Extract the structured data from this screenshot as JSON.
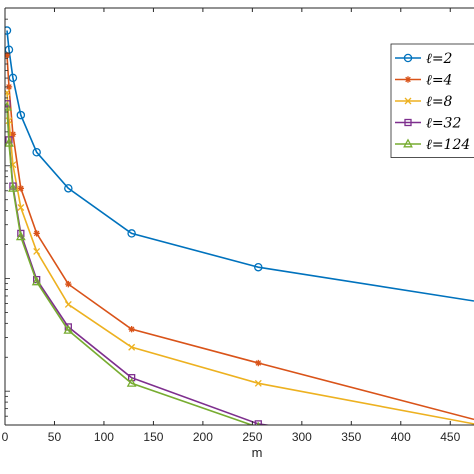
{
  "chart_data": {
    "type": "line",
    "title": "",
    "xlabel": "m",
    "ylabel": "",
    "xlim": [
      0,
      474
    ],
    "ylim_log10": [
      -4.3,
      -0.6
    ],
    "y_scale": "log",
    "x_ticks": [
      0,
      50,
      100,
      150,
      200,
      250,
      300,
      350,
      400,
      450
    ],
    "grid": false,
    "legend_position": "top-right",
    "series": [
      {
        "name": "ℓ=2",
        "color": "#0072BD",
        "marker": "circle",
        "x": [
          2,
          4,
          8,
          16,
          32,
          64,
          128,
          256,
          474
        ],
        "log10_y": [
          -0.8,
          -0.97,
          -1.22,
          -1.55,
          -1.88,
          -2.2,
          -2.6,
          -2.9,
          -3.2
        ]
      },
      {
        "name": "ℓ=4",
        "color": "#D95319",
        "marker": "asterisk",
        "x": [
          2,
          4,
          8,
          16,
          32,
          64,
          128,
          256,
          474
        ],
        "log10_y": [
          -1.02,
          -1.3,
          -1.72,
          -2.2,
          -2.6,
          -3.05,
          -3.45,
          -3.75,
          -4.25
        ]
      },
      {
        "name": "ℓ=8",
        "color": "#EDB120",
        "marker": "x",
        "x": [
          2,
          4,
          8,
          16,
          32,
          64,
          128,
          256,
          474
        ],
        "log10_y": [
          -1.35,
          -1.6,
          -1.99,
          -2.37,
          -2.76,
          -3.23,
          -3.61,
          -3.93,
          -4.29
        ]
      },
      {
        "name": "ℓ=32",
        "color": "#7E2F8E",
        "marker": "square",
        "x": [
          2,
          4,
          8,
          16,
          32,
          64,
          128,
          256,
          474
        ],
        "log10_y": [
          -1.45,
          -1.77,
          -2.18,
          -2.6,
          -3.01,
          -3.43,
          -3.88,
          -4.29,
          -4.55
        ]
      },
      {
        "name": "ℓ=124",
        "color": "#77AC30",
        "marker": "triangle",
        "x": [
          2,
          4,
          8,
          16,
          32,
          64,
          128,
          256,
          474
        ],
        "log10_y": [
          -1.48,
          -1.8,
          -2.2,
          -2.63,
          -3.03,
          -3.46,
          -3.93,
          -4.32,
          -4.57
        ]
      }
    ]
  }
}
